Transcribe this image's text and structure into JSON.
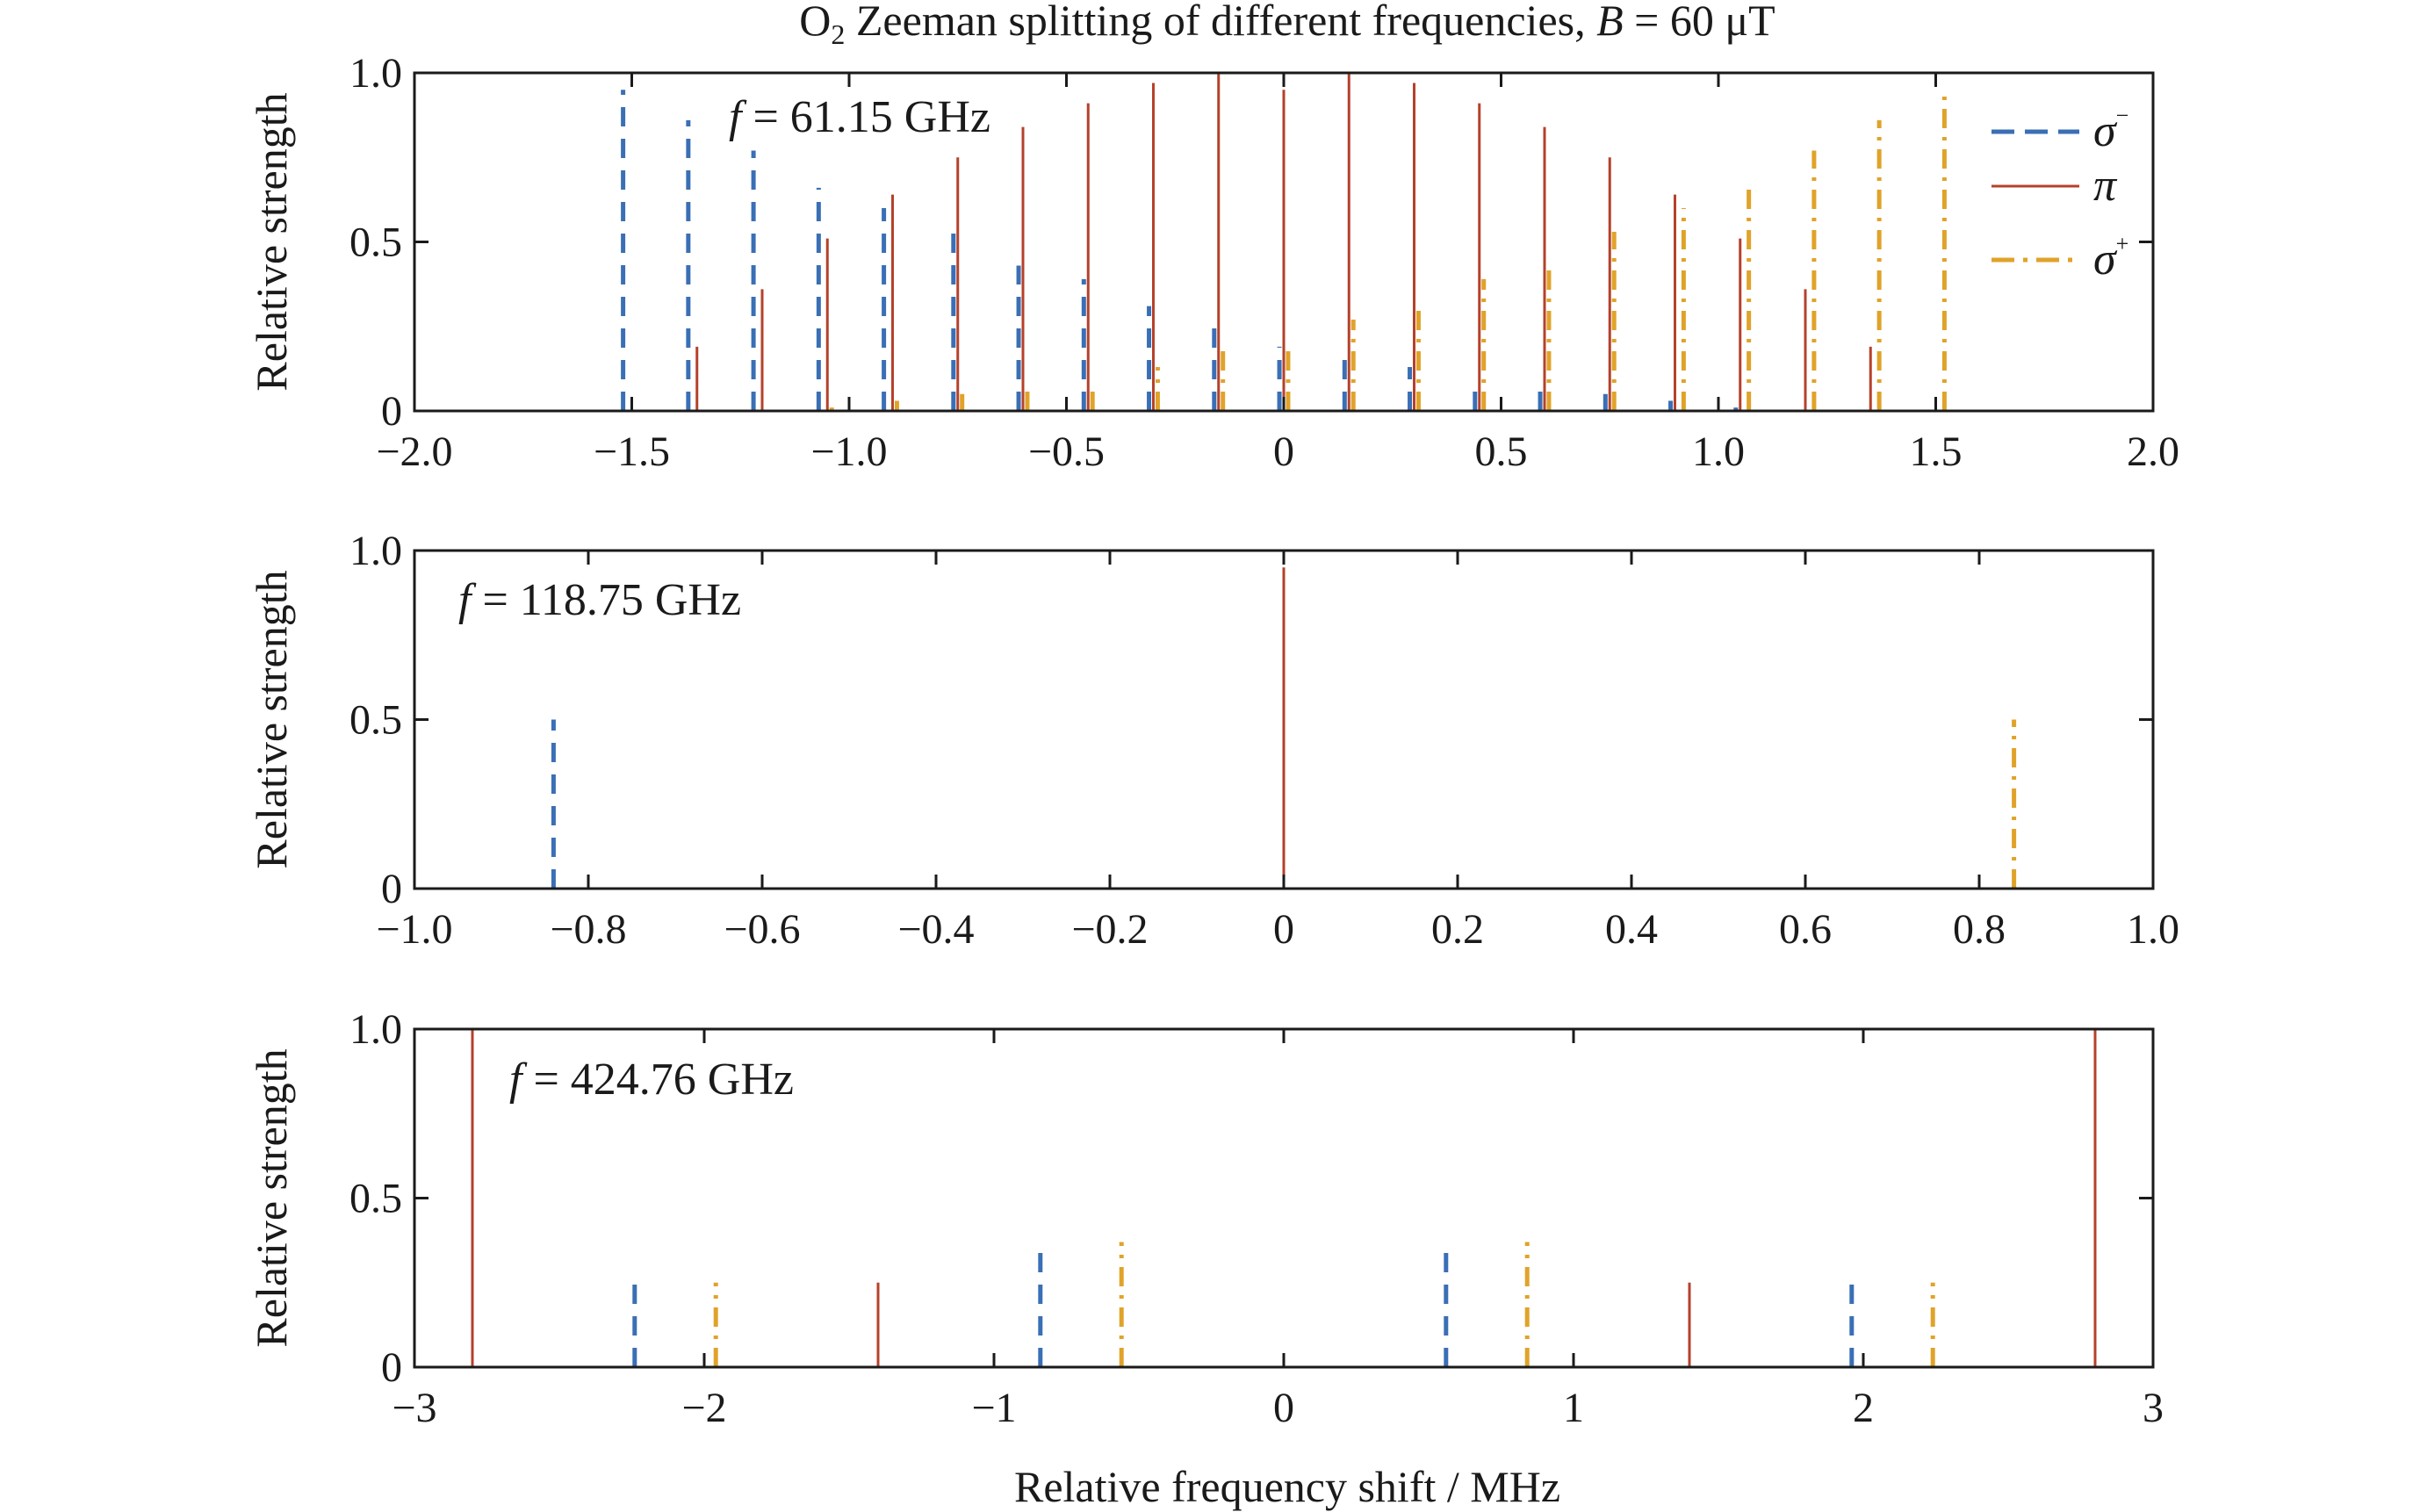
{
  "figure": {
    "title_prefix": "O",
    "title_sub": "2",
    "title_main": " Zeeman splitting of different frequencies, ",
    "title_field_var": "B",
    "title_field_value": " = 60 μT",
    "xlabel": "Relative frequency shift / MHz"
  },
  "colors": {
    "sigma_minus": "#3a6fb5",
    "pi": "#b5412b",
    "sigma_plus": "#e0a32a",
    "axes": "#1a1a1a"
  },
  "legend": {
    "placement": "top-right",
    "entries": [
      {
        "key": "sigma_minus",
        "symbol": "σ",
        "sup": "−",
        "style": "dashed"
      },
      {
        "key": "pi",
        "symbol": "π",
        "sup": "",
        "style": "solid"
      },
      {
        "key": "sigma_plus",
        "symbol": "σ",
        "sup": "+",
        "style": "dash-dot"
      }
    ]
  },
  "chart_data": [
    {
      "type": "stem",
      "annotation_var": "f",
      "annotation_value": " = 61.15 GHz",
      "ylabel": "Relative strength",
      "xlim": [
        -2.0,
        2.0
      ],
      "ylim": [
        0,
        1.0
      ],
      "xticks": [
        -2.0,
        -1.5,
        -1.0,
        -0.5,
        0,
        0.5,
        1.0,
        1.5,
        2.0
      ],
      "xtick_labels": [
        "−2.0",
        "−1.5",
        "−1.0",
        "−0.5",
        "0",
        "0.5",
        "1.0",
        "1.5",
        "2.0"
      ],
      "yticks": [
        0,
        0.5,
        1.0
      ],
      "ytick_labels": [
        "0",
        "0.5",
        "1.0"
      ],
      "series": [
        {
          "key": "sigma_minus",
          "x": [
            -1.52,
            -1.37,
            -1.22,
            -1.07,
            -0.92,
            -0.76,
            -0.61,
            -0.46,
            -0.31,
            -0.16,
            -0.01,
            0.14,
            0.29,
            0.44,
            0.59,
            0.74,
            0.89,
            1.04,
            1.19,
            1.34,
            1.49
          ],
          "y": [
            0.95,
            0.86,
            0.77,
            0.66,
            0.6,
            0.53,
            0.43,
            0.39,
            0.31,
            0.27,
            0.19,
            0.18,
            0.13,
            0.07,
            0.07,
            0.05,
            0.03,
            0.01,
            0.0,
            0.0,
            0.0
          ]
        },
        {
          "key": "pi",
          "x": [
            -1.35,
            -1.2,
            -1.05,
            -0.9,
            -0.75,
            -0.6,
            -0.45,
            -0.3,
            -0.15,
            0.0,
            0.15,
            0.3,
            0.45,
            0.6,
            0.75,
            0.9,
            1.05,
            1.2,
            1.35
          ],
          "y": [
            0.19,
            0.36,
            0.51,
            0.64,
            0.75,
            0.84,
            0.91,
            0.97,
            1.0,
            0.95,
            1.0,
            0.97,
            0.91,
            0.84,
            0.75,
            0.64,
            0.51,
            0.36,
            0.19
          ]
        },
        {
          "key": "sigma_plus",
          "x": [
            -1.49,
            -1.34,
            -1.19,
            -1.04,
            -0.89,
            -0.74,
            -0.59,
            -0.44,
            -0.29,
            -0.14,
            0.01,
            0.16,
            0.31,
            0.46,
            0.61,
            0.76,
            0.92,
            1.07,
            1.22,
            1.37,
            1.52
          ],
          "y": [
            0.0,
            0.0,
            0.0,
            0.01,
            0.03,
            0.05,
            0.07,
            0.07,
            0.13,
            0.18,
            0.19,
            0.27,
            0.31,
            0.39,
            0.43,
            0.53,
            0.6,
            0.66,
            0.77,
            0.86,
            0.95
          ]
        }
      ]
    },
    {
      "type": "stem",
      "annotation_var": "f",
      "annotation_value": " = 118.75 GHz",
      "ylabel": "Relative strength",
      "xlim": [
        -1.0,
        1.0
      ],
      "ylim": [
        0,
        1.0
      ],
      "xticks": [
        -1.0,
        -0.8,
        -0.6,
        -0.4,
        -0.2,
        0,
        0.2,
        0.4,
        0.6,
        0.8,
        1.0
      ],
      "xtick_labels": [
        "−1.0",
        "−0.8",
        "−0.6",
        "−0.4",
        "−0.2",
        "0",
        "0.2",
        "0.4",
        "0.6",
        "0.8",
        "1.0"
      ],
      "yticks": [
        0,
        0.5,
        1.0
      ],
      "ytick_labels": [
        "0",
        "0.5",
        "1.0"
      ],
      "series": [
        {
          "key": "sigma_minus",
          "x": [
            -0.84
          ],
          "y": [
            0.5
          ]
        },
        {
          "key": "pi",
          "x": [
            0.0
          ],
          "y": [
            0.95
          ]
        },
        {
          "key": "sigma_plus",
          "x": [
            0.84
          ],
          "y": [
            0.5
          ]
        }
      ]
    },
    {
      "type": "stem",
      "annotation_var": "f",
      "annotation_value": " = 424.76 GHz",
      "ylabel": "Relative strength",
      "xlim": [
        -3,
        3
      ],
      "ylim": [
        0,
        1.0
      ],
      "xticks": [
        -3,
        -2,
        -1,
        0,
        1,
        2,
        3
      ],
      "xtick_labels": [
        "−3",
        "−2",
        "−1",
        "0",
        "1",
        "2",
        "3"
      ],
      "yticks": [
        0,
        0.5,
        1.0
      ],
      "ytick_labels": [
        "0",
        "0.5",
        "1.0"
      ],
      "series": [
        {
          "key": "sigma_minus",
          "x": [
            -2.24,
            -0.84,
            0.56,
            1.96
          ],
          "y": [
            0.25,
            0.37,
            0.37,
            0.25
          ]
        },
        {
          "key": "pi",
          "x": [
            -2.8,
            -1.4,
            1.4,
            2.8
          ],
          "y": [
            1.0,
            0.25,
            0.25,
            1.0
          ]
        },
        {
          "key": "sigma_plus",
          "x": [
            -1.96,
            -0.56,
            0.84,
            2.24
          ],
          "y": [
            0.25,
            0.37,
            0.37,
            0.25
          ]
        }
      ]
    }
  ]
}
